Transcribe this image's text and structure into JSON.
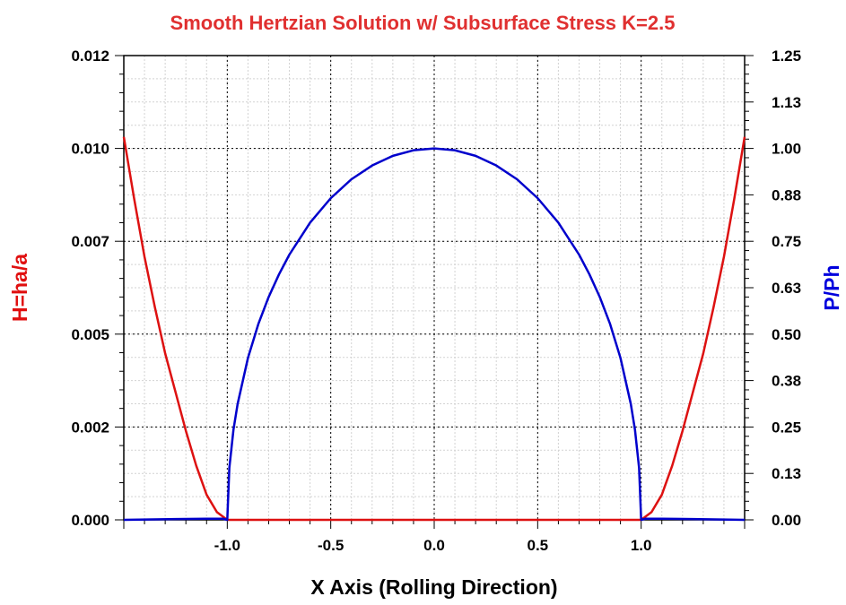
{
  "chart_data": {
    "type": "line",
    "title": "Smooth Hertzian Solution w/ Subsurface Stress K=2.5",
    "xlabel": "X Axis (Rolling Direction)",
    "ylabel_left": "H=ha/a",
    "ylabel_right": "P/Ph",
    "xlim": [
      -1.5,
      1.5
    ],
    "ylim_left": [
      0,
      0.012
    ],
    "ylim_right": [
      0,
      1.25
    ],
    "x_ticks": [
      "-1.0",
      "-0.5",
      "0.0",
      "0.5",
      "1.0"
    ],
    "x_tick_values": [
      -1.0,
      -0.5,
      0.0,
      0.5,
      1.0
    ],
    "y_left_ticks": [
      "0.000",
      "0.002",
      "0.005",
      "0.007",
      "0.010",
      "0.012"
    ],
    "y_left_tick_values": [
      0,
      0.0024,
      0.0048,
      0.0072,
      0.0096,
      0.012
    ],
    "y_right_ticks": [
      "0.00",
      "0.13",
      "0.25",
      "0.38",
      "0.50",
      "0.63",
      "0.75",
      "0.88",
      "1.00",
      "1.13",
      "1.25"
    ],
    "y_right_tick_values": [
      0,
      0.125,
      0.25,
      0.375,
      0.5,
      0.625,
      0.75,
      0.875,
      1.0,
      1.125,
      1.25
    ],
    "grid": true,
    "colors": {
      "title": "#e03030",
      "left_axis": "#e01010",
      "right_axis": "#0000dd",
      "film": "#dd1111",
      "pressure": "#0000cc"
    },
    "series": [
      {
        "axis": "left",
        "color": "#dd1111",
        "x": [
          -1.5,
          -1.45,
          -1.4,
          -1.35,
          -1.3,
          -1.25,
          -1.2,
          -1.15,
          -1.1,
          -1.05,
          -1.0,
          -0.5,
          0.0,
          0.5,
          1.0,
          1.05,
          1.1,
          1.15,
          1.2,
          1.25,
          1.3,
          1.35,
          1.4,
          1.45,
          1.5
        ],
        "y": [
          0.0099,
          0.0083,
          0.0068,
          0.0055,
          0.0043,
          0.0033,
          0.0023,
          0.0014,
          0.00065,
          0.0002,
          0.0,
          0.0,
          0.0,
          0.0,
          0.0,
          0.0002,
          0.00065,
          0.0014,
          0.0023,
          0.0033,
          0.0043,
          0.0055,
          0.0068,
          0.0083,
          0.0099
        ]
      },
      {
        "axis": "right",
        "color": "#0000cc",
        "x": [
          -1.5,
          -1.25,
          -1.1,
          -1.02,
          -1.0,
          -0.99,
          -0.97,
          -0.95,
          -0.9,
          -0.85,
          -0.8,
          -0.75,
          -0.7,
          -0.6,
          -0.5,
          -0.4,
          -0.3,
          -0.2,
          -0.1,
          0.0,
          0.1,
          0.2,
          0.3,
          0.4,
          0.5,
          0.6,
          0.7,
          0.75,
          0.8,
          0.85,
          0.9,
          0.95,
          0.97,
          0.99,
          1.0,
          1.02,
          1.1,
          1.25,
          1.5
        ],
        "y": [
          0.0,
          0.002,
          0.003,
          0.003,
          0.0,
          0.14,
          0.243,
          0.312,
          0.436,
          0.527,
          0.6,
          0.661,
          0.714,
          0.8,
          0.866,
          0.917,
          0.954,
          0.98,
          0.995,
          1.0,
          0.995,
          0.98,
          0.954,
          0.917,
          0.866,
          0.8,
          0.714,
          0.661,
          0.6,
          0.527,
          0.436,
          0.312,
          0.243,
          0.14,
          0.0,
          0.003,
          0.003,
          0.002,
          0.0
        ]
      }
    ]
  }
}
